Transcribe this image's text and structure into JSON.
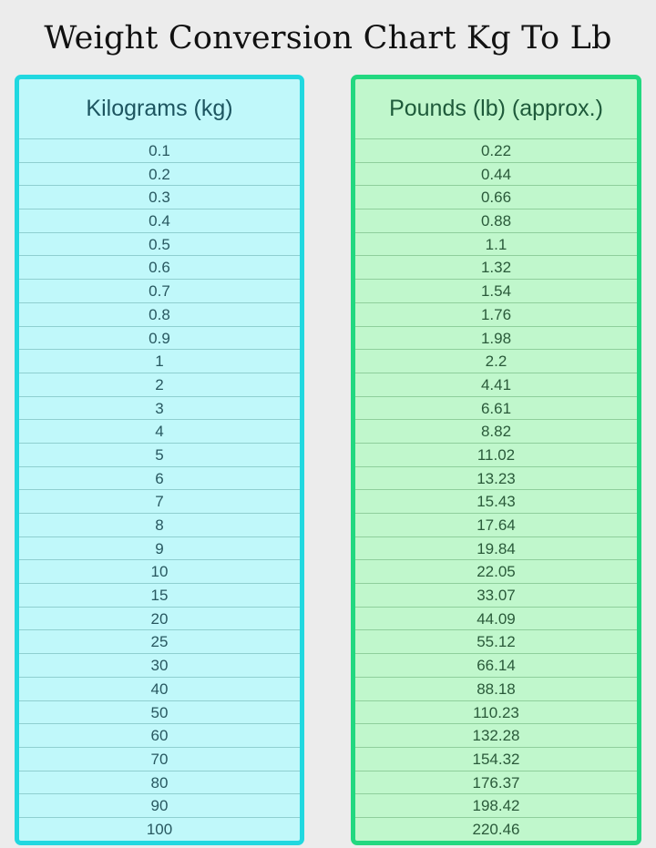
{
  "title": "Weight Conversion Chart Kg To Lb",
  "columns": {
    "kg": {
      "header": "Kilograms (kg)",
      "color": "#20d8e0"
    },
    "lb": {
      "header": "Pounds (lb) (approx.)",
      "color": "#22d880"
    }
  },
  "rows": [
    {
      "kg": "0.1",
      "lb": "0.22"
    },
    {
      "kg": "0.2",
      "lb": "0.44"
    },
    {
      "kg": "0.3",
      "lb": "0.66"
    },
    {
      "kg": "0.4",
      "lb": "0.88"
    },
    {
      "kg": "0.5",
      "lb": "1.1"
    },
    {
      "kg": "0.6",
      "lb": "1.32"
    },
    {
      "kg": "0.7",
      "lb": "1.54"
    },
    {
      "kg": "0.8",
      "lb": "1.76"
    },
    {
      "kg": "0.9",
      "lb": "1.98"
    },
    {
      "kg": "1",
      "lb": "2.2"
    },
    {
      "kg": "2",
      "lb": "4.41"
    },
    {
      "kg": "3",
      "lb": "6.61"
    },
    {
      "kg": "4",
      "lb": "8.82"
    },
    {
      "kg": "5",
      "lb": "11.02"
    },
    {
      "kg": "6",
      "lb": "13.23"
    },
    {
      "kg": "7",
      "lb": "15.43"
    },
    {
      "kg": "8",
      "lb": "17.64"
    },
    {
      "kg": "9",
      "lb": "19.84"
    },
    {
      "kg": "10",
      "lb": "22.05"
    },
    {
      "kg": "15",
      "lb": "33.07"
    },
    {
      "kg": "20",
      "lb": "44.09"
    },
    {
      "kg": "25",
      "lb": "55.12"
    },
    {
      "kg": "30",
      "lb": "66.14"
    },
    {
      "kg": "40",
      "lb": "88.18"
    },
    {
      "kg": "50",
      "lb": "110.23"
    },
    {
      "kg": "60",
      "lb": "132.28"
    },
    {
      "kg": "70",
      "lb": "154.32"
    },
    {
      "kg": "80",
      "lb": "176.37"
    },
    {
      "kg": "90",
      "lb": "198.42"
    },
    {
      "kg": "100",
      "lb": "220.46"
    }
  ]
}
